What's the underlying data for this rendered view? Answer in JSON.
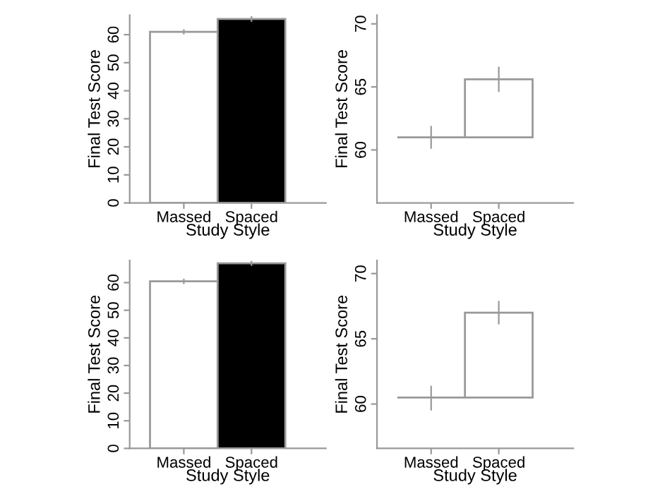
{
  "chart_data": [
    {
      "type": "bar",
      "categories": [
        "Massed",
        "Spaced"
      ],
      "values": [
        61.0,
        65.6
      ],
      "colors": [
        "#ffffff",
        "#000000"
      ],
      "errors": [
        [
          60.1,
          61.9
        ],
        [
          64.6,
          66.6
        ]
      ],
      "ylim": [
        0,
        67
      ],
      "yticks": [
        0,
        10,
        20,
        30,
        40,
        50,
        60
      ],
      "xlabel": "Study Style",
      "ylabel": "Final Test Score"
    },
    {
      "type": "bar",
      "categories": [
        "Massed",
        "Spaced"
      ],
      "base": [
        61.0,
        61.0
      ],
      "values": [
        0,
        4.6
      ],
      "colors": [
        "#999999",
        "#ffffff"
      ],
      "errors": [
        [
          60.1,
          61.9
        ],
        [
          64.6,
          66.6
        ]
      ],
      "ylim": [
        55.8,
        70.7
      ],
      "yticks": [
        60,
        65,
        70
      ],
      "xlabel": "Study Style",
      "ylabel": "Final Test Score"
    },
    {
      "type": "bar",
      "categories": [
        "Massed",
        "Spaced"
      ],
      "values": [
        60.5,
        67.0
      ],
      "colors": [
        "#ffffff",
        "#000000"
      ],
      "errors": [
        [
          59.5,
          61.4
        ],
        [
          66.1,
          67.9
        ]
      ],
      "ylim": [
        0,
        68
      ],
      "yticks": [
        0,
        10,
        20,
        30,
        40,
        50,
        60
      ],
      "xlabel": "Study Style",
      "ylabel": "Final Test Score"
    },
    {
      "type": "bar",
      "categories": [
        "Massed",
        "Spaced"
      ],
      "base": [
        60.5,
        60.5
      ],
      "values": [
        0,
        6.5
      ],
      "colors": [
        "#999999",
        "#ffffff"
      ],
      "errors": [
        [
          59.5,
          61.4
        ],
        [
          66.1,
          67.9
        ]
      ],
      "ylim": [
        56.6,
        71.0
      ],
      "yticks": [
        60,
        65,
        70
      ],
      "xlabel": "Study Style",
      "ylabel": "Final Test Score"
    }
  ]
}
